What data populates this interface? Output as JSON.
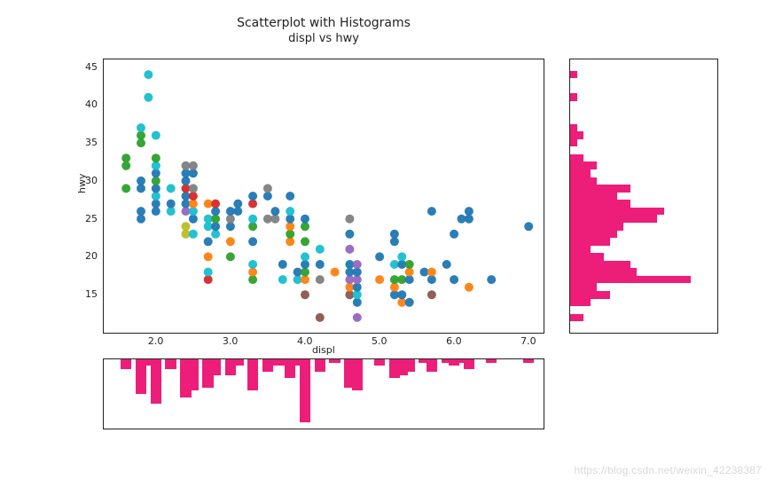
{
  "title": "Scatterplot with Histograms",
  "subtitle": "displ vs hwy",
  "axes": {
    "xlabel": "displ",
    "ylabel": "hwy",
    "xlim": [
      1.3,
      7.2
    ],
    "ylim": [
      10,
      46
    ],
    "xticks": [
      2.0,
      3.0,
      4.0,
      5.0,
      6.0,
      7.0
    ],
    "xticklabels": [
      "2.0",
      "3.0",
      "4.0",
      "5.0",
      "6.0",
      "7.0"
    ],
    "yticks": [
      15,
      20,
      25,
      30,
      35,
      40,
      45
    ],
    "yticklabels": [
      "15",
      "20",
      "25",
      "30",
      "35",
      "40",
      "45"
    ],
    "tick_fontsize": 11,
    "label_fontsize": 11
  },
  "scatter": {
    "type": "scatter",
    "marker_radius": 5,
    "marker_alpha": 0.95,
    "palette": {
      "a": "#1f77b4",
      "b": "#ff7f0e",
      "c": "#2ca02c",
      "d": "#d62728",
      "e": "#9467bd",
      "f": "#8c564b",
      "g": "#e377c2",
      "h": "#7f7f7f",
      "i": "#bcbd22",
      "j": "#17becf"
    },
    "points": [
      {
        "x": 1.6,
        "y": 29,
        "c": "c"
      },
      {
        "x": 1.6,
        "y": 32,
        "c": "c"
      },
      {
        "x": 1.6,
        "y": 33,
        "c": "c"
      },
      {
        "x": 1.8,
        "y": 25,
        "c": "a"
      },
      {
        "x": 1.8,
        "y": 26,
        "c": "a"
      },
      {
        "x": 1.8,
        "y": 29,
        "c": "a"
      },
      {
        "x": 1.8,
        "y": 30,
        "c": "a"
      },
      {
        "x": 1.8,
        "y": 35,
        "c": "c"
      },
      {
        "x": 1.8,
        "y": 36,
        "c": "c"
      },
      {
        "x": 1.8,
        "y": 37,
        "c": "j"
      },
      {
        "x": 1.9,
        "y": 44,
        "c": "j"
      },
      {
        "x": 1.9,
        "y": 41,
        "c": "j"
      },
      {
        "x": 2.0,
        "y": 26,
        "c": "a"
      },
      {
        "x": 2.0,
        "y": 27,
        "c": "a"
      },
      {
        "x": 2.0,
        "y": 28,
        "c": "j"
      },
      {
        "x": 2.0,
        "y": 29,
        "c": "a"
      },
      {
        "x": 2.0,
        "y": 30,
        "c": "c"
      },
      {
        "x": 2.0,
        "y": 31,
        "c": "a"
      },
      {
        "x": 2.0,
        "y": 32,
        "c": "j"
      },
      {
        "x": 2.0,
        "y": 33,
        "c": "c"
      },
      {
        "x": 2.0,
        "y": 36,
        "c": "j"
      },
      {
        "x": 2.2,
        "y": 26,
        "c": "j"
      },
      {
        "x": 2.2,
        "y": 27,
        "c": "a"
      },
      {
        "x": 2.2,
        "y": 29,
        "c": "j"
      },
      {
        "x": 2.4,
        "y": 23,
        "c": "i"
      },
      {
        "x": 2.4,
        "y": 24,
        "c": "i"
      },
      {
        "x": 2.4,
        "y": 26,
        "c": "e"
      },
      {
        "x": 2.4,
        "y": 27,
        "c": "a"
      },
      {
        "x": 2.4,
        "y": 28,
        "c": "a"
      },
      {
        "x": 2.4,
        "y": 29,
        "c": "d"
      },
      {
        "x": 2.4,
        "y": 30,
        "c": "a"
      },
      {
        "x": 2.4,
        "y": 31,
        "c": "a"
      },
      {
        "x": 2.4,
        "y": 32,
        "c": "h"
      },
      {
        "x": 2.5,
        "y": 23,
        "c": "j"
      },
      {
        "x": 2.5,
        "y": 25,
        "c": "a"
      },
      {
        "x": 2.5,
        "y": 26,
        "c": "j"
      },
      {
        "x": 2.5,
        "y": 27,
        "c": "b"
      },
      {
        "x": 2.5,
        "y": 28,
        "c": "d"
      },
      {
        "x": 2.5,
        "y": 29,
        "c": "h"
      },
      {
        "x": 2.5,
        "y": 31,
        "c": "a"
      },
      {
        "x": 2.5,
        "y": 32,
        "c": "h"
      },
      {
        "x": 2.7,
        "y": 17,
        "c": "d"
      },
      {
        "x": 2.7,
        "y": 18,
        "c": "j"
      },
      {
        "x": 2.7,
        "y": 20,
        "c": "b"
      },
      {
        "x": 2.7,
        "y": 22,
        "c": "a"
      },
      {
        "x": 2.7,
        "y": 24,
        "c": "j"
      },
      {
        "x": 2.7,
        "y": 25,
        "c": "j"
      },
      {
        "x": 2.7,
        "y": 27,
        "c": "b"
      },
      {
        "x": 2.8,
        "y": 23,
        "c": "j"
      },
      {
        "x": 2.8,
        "y": 24,
        "c": "a"
      },
      {
        "x": 2.8,
        "y": 25,
        "c": "c"
      },
      {
        "x": 2.8,
        "y": 26,
        "c": "a"
      },
      {
        "x": 2.8,
        "y": 27,
        "c": "d"
      },
      {
        "x": 3.0,
        "y": 20,
        "c": "c"
      },
      {
        "x": 3.0,
        "y": 22,
        "c": "b"
      },
      {
        "x": 3.0,
        "y": 24,
        "c": "a"
      },
      {
        "x": 3.0,
        "y": 25,
        "c": "h"
      },
      {
        "x": 3.0,
        "y": 26,
        "c": "a"
      },
      {
        "x": 3.1,
        "y": 26,
        "c": "a"
      },
      {
        "x": 3.1,
        "y": 27,
        "c": "a"
      },
      {
        "x": 3.3,
        "y": 17,
        "c": "c"
      },
      {
        "x": 3.3,
        "y": 18,
        "c": "b"
      },
      {
        "x": 3.3,
        "y": 19,
        "c": "j"
      },
      {
        "x": 3.3,
        "y": 22,
        "c": "a"
      },
      {
        "x": 3.3,
        "y": 24,
        "c": "c"
      },
      {
        "x": 3.3,
        "y": 25,
        "c": "j"
      },
      {
        "x": 3.3,
        "y": 27,
        "c": "d"
      },
      {
        "x": 3.3,
        "y": 28,
        "c": "a"
      },
      {
        "x": 3.5,
        "y": 25,
        "c": "h"
      },
      {
        "x": 3.5,
        "y": 28,
        "c": "a"
      },
      {
        "x": 3.5,
        "y": 29,
        "c": "h"
      },
      {
        "x": 3.6,
        "y": 25,
        "c": "h"
      },
      {
        "x": 3.6,
        "y": 26,
        "c": "a"
      },
      {
        "x": 3.7,
        "y": 17,
        "c": "j"
      },
      {
        "x": 3.7,
        "y": 19,
        "c": "a"
      },
      {
        "x": 3.8,
        "y": 22,
        "c": "b"
      },
      {
        "x": 3.8,
        "y": 23,
        "c": "c"
      },
      {
        "x": 3.8,
        "y": 24,
        "c": "b"
      },
      {
        "x": 3.8,
        "y": 25,
        "c": "a"
      },
      {
        "x": 3.8,
        "y": 26,
        "c": "j"
      },
      {
        "x": 3.8,
        "y": 28,
        "c": "a"
      },
      {
        "x": 3.9,
        "y": 17,
        "c": "j"
      },
      {
        "x": 3.9,
        "y": 18,
        "c": "a"
      },
      {
        "x": 4.0,
        "y": 15,
        "c": "f"
      },
      {
        "x": 4.0,
        "y": 17,
        "c": "b"
      },
      {
        "x": 4.0,
        "y": 18,
        "c": "c"
      },
      {
        "x": 4.0,
        "y": 19,
        "c": "a"
      },
      {
        "x": 4.0,
        "y": 20,
        "c": "j"
      },
      {
        "x": 4.0,
        "y": 22,
        "c": "c"
      },
      {
        "x": 4.0,
        "y": 24,
        "c": "c"
      },
      {
        "x": 4.0,
        "y": 25,
        "c": "a"
      },
      {
        "x": 4.2,
        "y": 12,
        "c": "f"
      },
      {
        "x": 4.2,
        "y": 17,
        "c": "h"
      },
      {
        "x": 4.2,
        "y": 19,
        "c": "a"
      },
      {
        "x": 4.2,
        "y": 21,
        "c": "j"
      },
      {
        "x": 4.4,
        "y": 18,
        "c": "b"
      },
      {
        "x": 4.6,
        "y": 15,
        "c": "f"
      },
      {
        "x": 4.6,
        "y": 16,
        "c": "b"
      },
      {
        "x": 4.6,
        "y": 17,
        "c": "e"
      },
      {
        "x": 4.6,
        "y": 18,
        "c": "a"
      },
      {
        "x": 4.6,
        "y": 19,
        "c": "a"
      },
      {
        "x": 4.6,
        "y": 21,
        "c": "e"
      },
      {
        "x": 4.6,
        "y": 23,
        "c": "a"
      },
      {
        "x": 4.6,
        "y": 25,
        "c": "h"
      },
      {
        "x": 4.7,
        "y": 12,
        "c": "e"
      },
      {
        "x": 4.7,
        "y": 14,
        "c": "a"
      },
      {
        "x": 4.7,
        "y": 15,
        "c": "j"
      },
      {
        "x": 4.7,
        "y": 16,
        "c": "a"
      },
      {
        "x": 4.7,
        "y": 17,
        "c": "e"
      },
      {
        "x": 4.7,
        "y": 18,
        "c": "a"
      },
      {
        "x": 4.7,
        "y": 19,
        "c": "e"
      },
      {
        "x": 5.0,
        "y": 17,
        "c": "b"
      },
      {
        "x": 5.0,
        "y": 20,
        "c": "a"
      },
      {
        "x": 5.2,
        "y": 15,
        "c": "a"
      },
      {
        "x": 5.2,
        "y": 16,
        "c": "b"
      },
      {
        "x": 5.2,
        "y": 17,
        "c": "c"
      },
      {
        "x": 5.2,
        "y": 19,
        "c": "j"
      },
      {
        "x": 5.2,
        "y": 22,
        "c": "a"
      },
      {
        "x": 5.2,
        "y": 23,
        "c": "a"
      },
      {
        "x": 5.3,
        "y": 14,
        "c": "b"
      },
      {
        "x": 5.3,
        "y": 15,
        "c": "a"
      },
      {
        "x": 5.3,
        "y": 17,
        "c": "c"
      },
      {
        "x": 5.3,
        "y": 19,
        "c": "a"
      },
      {
        "x": 5.3,
        "y": 20,
        "c": "j"
      },
      {
        "x": 5.4,
        "y": 14,
        "c": "a"
      },
      {
        "x": 5.4,
        "y": 17,
        "c": "a"
      },
      {
        "x": 5.4,
        "y": 18,
        "c": "b"
      },
      {
        "x": 5.4,
        "y": 19,
        "c": "c"
      },
      {
        "x": 5.6,
        "y": 18,
        "c": "a"
      },
      {
        "x": 5.7,
        "y": 15,
        "c": "f"
      },
      {
        "x": 5.7,
        "y": 17,
        "c": "a"
      },
      {
        "x": 5.7,
        "y": 18,
        "c": "b"
      },
      {
        "x": 5.7,
        "y": 26,
        "c": "a"
      },
      {
        "x": 5.9,
        "y": 19,
        "c": "a"
      },
      {
        "x": 6.0,
        "y": 17,
        "c": "a"
      },
      {
        "x": 6.0,
        "y": 23,
        "c": "a"
      },
      {
        "x": 6.1,
        "y": 25,
        "c": "a"
      },
      {
        "x": 6.2,
        "y": 16,
        "c": "b"
      },
      {
        "x": 6.2,
        "y": 25,
        "c": "a"
      },
      {
        "x": 6.2,
        "y": 26,
        "c": "a"
      },
      {
        "x": 6.5,
        "y": 17,
        "c": "a"
      },
      {
        "x": 7.0,
        "y": 24,
        "c": "a"
      }
    ]
  },
  "right_histogram": {
    "type": "histogram-horizontal",
    "color": "#ec1e79",
    "xlim": [
      0,
      22
    ],
    "bins": [
      {
        "y": 12,
        "n": 2
      },
      {
        "y": 13,
        "n": 0
      },
      {
        "y": 14,
        "n": 3
      },
      {
        "y": 15,
        "n": 6
      },
      {
        "y": 16,
        "n": 4
      },
      {
        "y": 17,
        "n": 18
      },
      {
        "y": 18,
        "n": 10
      },
      {
        "y": 19,
        "n": 9
      },
      {
        "y": 20,
        "n": 5
      },
      {
        "y": 21,
        "n": 3
      },
      {
        "y": 22,
        "n": 6
      },
      {
        "y": 23,
        "n": 7
      },
      {
        "y": 24,
        "n": 8
      },
      {
        "y": 25,
        "n": 13
      },
      {
        "y": 26,
        "n": 14
      },
      {
        "y": 27,
        "n": 9
      },
      {
        "y": 28,
        "n": 7
      },
      {
        "y": 29,
        "n": 9
      },
      {
        "y": 30,
        "n": 4
      },
      {
        "y": 31,
        "n": 3
      },
      {
        "y": 32,
        "n": 4
      },
      {
        "y": 33,
        "n": 2
      },
      {
        "y": 34,
        "n": 0
      },
      {
        "y": 35,
        "n": 1
      },
      {
        "y": 36,
        "n": 2
      },
      {
        "y": 37,
        "n": 1
      },
      {
        "y": 38,
        "n": 0
      },
      {
        "y": 39,
        "n": 0
      },
      {
        "y": 40,
        "n": 0
      },
      {
        "y": 41,
        "n": 1
      },
      {
        "y": 42,
        "n": 0
      },
      {
        "y": 43,
        "n": 0
      },
      {
        "y": 44,
        "n": 1
      }
    ]
  },
  "bottom_histogram": {
    "type": "histogram-inverted",
    "color": "#ec1e79",
    "ylim": [
      0,
      22
    ],
    "bins": [
      {
        "x": 1.6,
        "n": 3
      },
      {
        "x": 1.8,
        "n": 11
      },
      {
        "x": 1.9,
        "n": 2
      },
      {
        "x": 2.0,
        "n": 14
      },
      {
        "x": 2.2,
        "n": 3
      },
      {
        "x": 2.4,
        "n": 12
      },
      {
        "x": 2.5,
        "n": 10
      },
      {
        "x": 2.7,
        "n": 9
      },
      {
        "x": 2.8,
        "n": 5
      },
      {
        "x": 3.0,
        "n": 5
      },
      {
        "x": 3.1,
        "n": 2
      },
      {
        "x": 3.3,
        "n": 10
      },
      {
        "x": 3.5,
        "n": 4
      },
      {
        "x": 3.6,
        "n": 2
      },
      {
        "x": 3.7,
        "n": 2
      },
      {
        "x": 3.8,
        "n": 6
      },
      {
        "x": 3.9,
        "n": 2
      },
      {
        "x": 4.0,
        "n": 20
      },
      {
        "x": 4.2,
        "n": 4
      },
      {
        "x": 4.4,
        "n": 1
      },
      {
        "x": 4.6,
        "n": 9
      },
      {
        "x": 4.7,
        "n": 10
      },
      {
        "x": 5.0,
        "n": 2
      },
      {
        "x": 5.2,
        "n": 6
      },
      {
        "x": 5.3,
        "n": 5
      },
      {
        "x": 5.4,
        "n": 4
      },
      {
        "x": 5.6,
        "n": 1
      },
      {
        "x": 5.7,
        "n": 4
      },
      {
        "x": 5.9,
        "n": 1
      },
      {
        "x": 6.0,
        "n": 2
      },
      {
        "x": 6.1,
        "n": 1
      },
      {
        "x": 6.2,
        "n": 3
      },
      {
        "x": 6.5,
        "n": 1
      },
      {
        "x": 7.0,
        "n": 1
      }
    ]
  },
  "watermark": "https://blog.csdn.net/weixin_42238387"
}
